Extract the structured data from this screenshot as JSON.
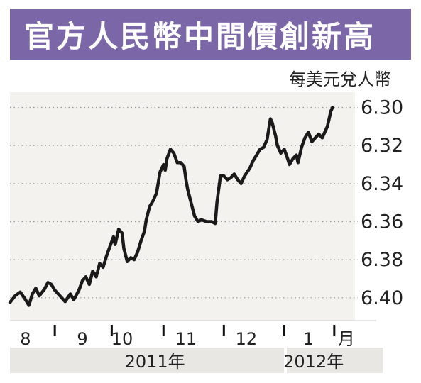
{
  "title": "官方人民幣中間價創新高",
  "colors": {
    "title_bg": "#7b67a8",
    "plot_bg": "#f4f2ef",
    "line": "#1a1a1a",
    "gridline": "#9a9a9a",
    "year_band": "#e9e7e4"
  },
  "chart_data": {
    "type": "line",
    "title": "官方人民幣中間價創新高",
    "ylabel": "每美元兌人幣",
    "ylim": [
      6.412,
      6.292
    ],
    "y_inverted": true,
    "yticks": [
      "6.30",
      "6.32",
      "6.34",
      "6.36",
      "6.38",
      "6.40"
    ],
    "ytick_values": [
      6.3,
      6.32,
      6.34,
      6.36,
      6.38,
      6.4
    ],
    "grid": true,
    "xlim": [
      0,
      100
    ],
    "month_ticks": [
      "8",
      "9",
      "10",
      "11",
      "12",
      "1",
      "月"
    ],
    "month_tick_values": [
      4.5,
      21,
      32.5,
      51,
      68.5,
      86.5,
      97.5
    ],
    "separator_values": [
      13,
      29.5,
      44.5,
      62,
      79.5,
      94
    ],
    "year_labels": [
      {
        "label": "2011年",
        "x": 42
      },
      {
        "label": "2012年",
        "x": 88
      }
    ],
    "series": [
      {
        "values": [
          [
            0,
            6.4025
          ],
          [
            1.5,
            6.399
          ],
          [
            3,
            6.397
          ],
          [
            4.5,
            6.401
          ],
          [
            5.5,
            6.404
          ],
          [
            6.5,
            6.398
          ],
          [
            7.5,
            6.395
          ],
          [
            8.5,
            6.399
          ],
          [
            10,
            6.3955
          ],
          [
            11,
            6.392
          ],
          [
            12,
            6.393
          ],
          [
            13,
            6.396
          ],
          [
            14.5,
            6.399
          ],
          [
            16,
            6.402
          ],
          [
            17.5,
            6.398
          ],
          [
            18.5,
            6.401
          ],
          [
            20,
            6.396
          ],
          [
            21,
            6.391
          ],
          [
            22,
            6.389
          ],
          [
            23,
            6.393
          ],
          [
            24,
            6.386
          ],
          [
            25,
            6.389
          ],
          [
            26,
            6.382
          ],
          [
            27,
            6.384
          ],
          [
            28,
            6.378
          ],
          [
            29,
            6.373
          ],
          [
            30,
            6.368
          ],
          [
            30.5,
            6.372
          ],
          [
            31.5,
            6.364
          ],
          [
            32.5,
            6.366
          ],
          [
            33,
            6.374
          ],
          [
            34,
            6.381
          ],
          [
            35,
            6.379
          ],
          [
            36,
            6.38
          ],
          [
            37,
            6.376
          ],
          [
            38,
            6.37
          ],
          [
            39,
            6.365
          ],
          [
            39.5,
            6.359
          ],
          [
            40.5,
            6.352
          ],
          [
            41.5,
            6.349
          ],
          [
            42.5,
            6.345
          ],
          [
            43.5,
            6.334
          ],
          [
            44.5,
            6.33
          ],
          [
            45,
            6.333
          ],
          [
            45.5,
            6.327
          ],
          [
            46.5,
            6.322
          ],
          [
            47.5,
            6.324
          ],
          [
            48.5,
            6.329
          ],
          [
            49.5,
            6.329
          ],
          [
            50.5,
            6.331
          ],
          [
            51,
            6.338
          ],
          [
            51.5,
            6.343
          ],
          [
            52.5,
            6.35
          ],
          [
            53.5,
            6.357
          ],
          [
            54.5,
            6.36
          ],
          [
            55.5,
            6.359
          ],
          [
            57,
            6.36
          ],
          [
            58.5,
            6.36
          ],
          [
            59.5,
            6.361
          ],
          [
            60,
            6.35
          ],
          [
            61,
            6.336
          ],
          [
            62,
            6.336
          ],
          [
            63,
            6.338
          ],
          [
            64,
            6.337
          ],
          [
            65,
            6.335
          ],
          [
            66,
            6.338
          ],
          [
            67,
            6.34
          ],
          [
            68,
            6.336
          ],
          [
            69.5,
            6.332
          ],
          [
            70.5,
            6.328
          ],
          [
            71.5,
            6.325
          ],
          [
            72.5,
            6.322
          ],
          [
            73.5,
            6.321
          ],
          [
            74.5,
            6.317
          ],
          [
            75.5,
            6.306
          ],
          [
            76,
            6.308
          ],
          [
            77,
            6.315
          ],
          [
            77.5,
            6.32
          ],
          [
            78.5,
            6.324
          ],
          [
            79.5,
            6.322
          ],
          [
            80.5,
            6.327
          ],
          [
            81,
            6.33
          ],
          [
            82,
            6.327
          ],
          [
            83,
            6.325
          ],
          [
            83.5,
            6.329
          ],
          [
            84.5,
            6.321
          ],
          [
            85.5,
            6.316
          ],
          [
            86.5,
            6.313
          ],
          [
            87.5,
            6.318
          ],
          [
            88.5,
            6.316
          ],
          [
            89.5,
            6.314
          ],
          [
            90.5,
            6.316
          ],
          [
            91,
            6.314
          ],
          [
            92,
            6.31
          ],
          [
            92.5,
            6.306
          ],
          [
            93,
            6.302
          ],
          [
            93.5,
            6.3
          ]
        ]
      }
    ]
  }
}
